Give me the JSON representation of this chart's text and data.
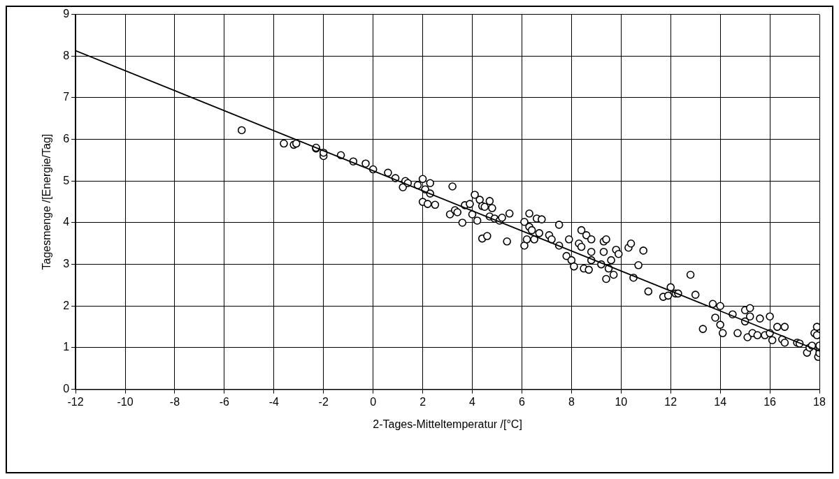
{
  "chart_data": {
    "type": "scatter",
    "xlabel": "2-Tages-Mitteltemperatur /[°C]",
    "ylabel": "Tagesmenge /[Energie/Tag]",
    "xlim": [
      -12,
      18
    ],
    "xticks": [
      -12,
      -10,
      -8,
      -6,
      -4,
      -2,
      0,
      2,
      4,
      6,
      8,
      10,
      12,
      14,
      16,
      18
    ],
    "ylim": [
      0,
      9
    ],
    "yticks": [
      0,
      1,
      2,
      3,
      4,
      5,
      6,
      7,
      8,
      9
    ],
    "grid": true,
    "legend": false,
    "series": [
      {
        "color": "#000000",
        "marker": "circle",
        "x": [
          -5.3,
          -3.6,
          -3.2,
          -3.1,
          -2.3,
          -2.3,
          -2.0,
          -2.0,
          -1.3,
          -0.8,
          -0.3,
          0.0,
          0.6,
          0.9,
          1.2,
          1.3,
          1.4,
          1.8,
          2.0,
          2.0,
          2.1,
          2.2,
          2.3,
          2.3,
          2.5,
          3.1,
          3.2,
          3.3,
          3.4,
          3.6,
          3.7,
          3.9,
          4.0,
          4.1,
          4.2,
          4.3,
          4.4,
          4.4,
          4.5,
          4.6,
          4.7,
          4.7,
          4.8,
          4.9,
          5.1,
          5.2,
          5.4,
          5.5,
          6.1,
          6.1,
          6.2,
          6.3,
          6.3,
          6.4,
          6.5,
          6.6,
          6.7,
          6.8,
          7.1,
          7.2,
          7.5,
          7.5,
          7.8,
          7.9,
          8.0,
          8.1,
          8.3,
          8.4,
          8.4,
          8.5,
          8.6,
          8.7,
          8.8,
          8.8,
          8.8,
          9.2,
          9.3,
          9.3,
          9.4,
          9.4,
          9.5,
          9.6,
          9.7,
          9.8,
          9.9,
          10.3,
          10.4,
          10.5,
          10.7,
          10.9,
          11.1,
          11.7,
          11.9,
          12.0,
          12.2,
          12.3,
          12.8,
          13.0,
          13.3,
          13.7,
          13.8,
          14.0,
          14.0,
          14.1,
          14.5,
          14.7,
          15.0,
          15.0,
          15.1,
          15.2,
          15.2,
          15.3,
          15.5,
          15.6,
          15.8,
          16.0,
          16.0,
          16.1,
          16.3,
          16.5,
          16.6,
          16.6,
          17.1,
          17.2,
          17.5,
          17.6,
          17.7,
          17.8,
          17.9,
          17.9,
          18.0,
          18.0,
          17.95,
          18.0
        ],
        "values": [
          6.22,
          5.9,
          5.87,
          5.9,
          5.78,
          5.8,
          5.6,
          5.68,
          5.62,
          5.47,
          5.42,
          5.28,
          5.2,
          5.07,
          4.85,
          5.0,
          4.95,
          4.9,
          5.05,
          4.5,
          4.8,
          4.45,
          4.95,
          4.7,
          4.43,
          4.2,
          4.87,
          4.3,
          4.25,
          4.0,
          4.42,
          4.45,
          4.2,
          4.67,
          4.05,
          4.55,
          3.62,
          4.4,
          4.38,
          3.68,
          4.52,
          4.15,
          4.35,
          4.1,
          4.05,
          4.12,
          3.55,
          4.22,
          4.02,
          3.45,
          3.6,
          4.22,
          3.9,
          3.82,
          3.6,
          4.1,
          3.75,
          4.08,
          3.7,
          3.6,
          3.95,
          3.45,
          3.2,
          3.6,
          3.1,
          2.95,
          3.5,
          3.82,
          3.42,
          2.9,
          3.7,
          2.87,
          3.6,
          3.3,
          3.1,
          3.0,
          3.55,
          3.3,
          3.6,
          2.65,
          2.9,
          3.1,
          2.75,
          3.35,
          3.25,
          3.4,
          3.5,
          2.68,
          2.98,
          3.33,
          2.35,
          2.22,
          2.25,
          2.45,
          2.3,
          2.3,
          2.75,
          2.27,
          1.45,
          2.05,
          1.72,
          2.0,
          1.55,
          1.35,
          1.8,
          1.35,
          1.9,
          1.63,
          1.25,
          1.95,
          1.75,
          1.35,
          1.3,
          1.7,
          1.3,
          1.75,
          1.35,
          1.18,
          1.5,
          1.2,
          1.5,
          1.12,
          1.12,
          1.1,
          0.88,
          1.0,
          1.05,
          1.35,
          1.5,
          1.3,
          0.95,
          1.05,
          0.78,
          0.87
        ]
      },
      {
        "type": "line",
        "color": "#000000",
        "marker": "none",
        "line_style": "solid",
        "x": [
          -12,
          18
        ],
        "values": [
          8.13,
          0.92
        ]
      }
    ]
  }
}
